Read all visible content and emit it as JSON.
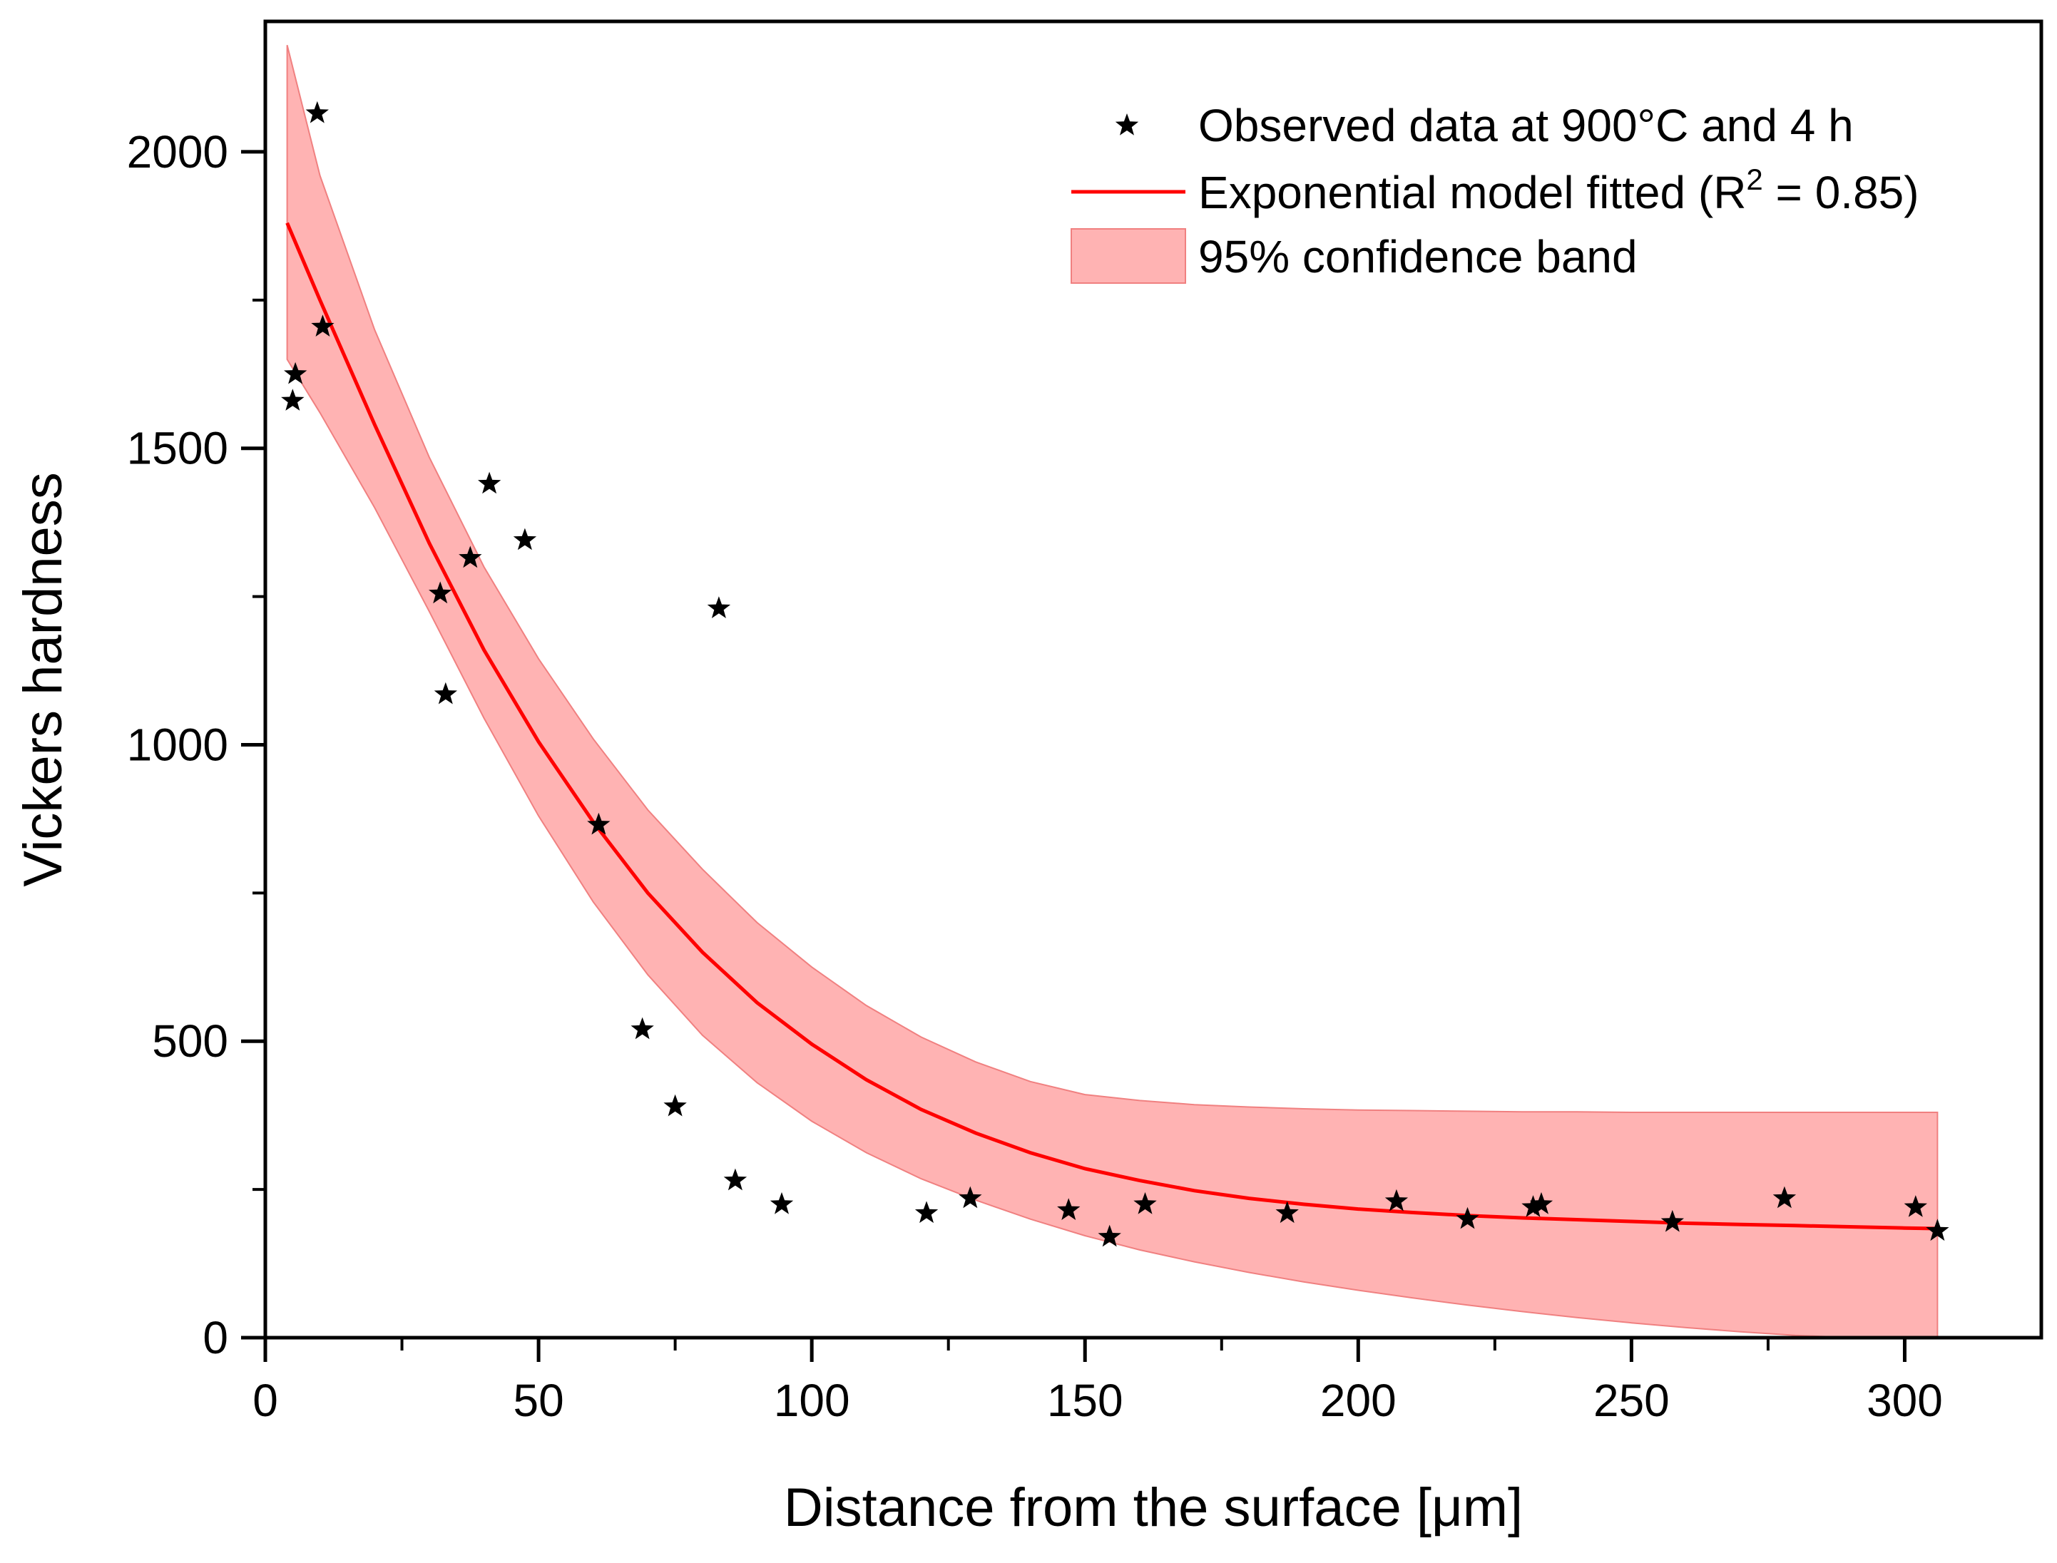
{
  "chart_data": {
    "type": "scatter",
    "xlabel": "Distance from the surface [μm]",
    "ylabel": "Vickers hardness",
    "xlim": [
      0,
      325
    ],
    "ylim": [
      0,
      2220
    ],
    "x_ticks": [
      0,
      50,
      100,
      150,
      200,
      250,
      300
    ],
    "y_ticks": [
      0,
      500,
      1000,
      1500,
      2000
    ],
    "grid": false,
    "legend_position": "top-right",
    "legend": {
      "observed": "Observed data at 900°C and 4 h",
      "fit_prefix": "Exponential model fitted (R",
      "fit_sup": "2",
      "fit_suffix": " = 0.85)",
      "band": "95% confidence band"
    },
    "colors": {
      "points": "#000000",
      "fit_line": "#ff0000",
      "band_fill": "#ffb3b3",
      "band_edge": "#f08080"
    },
    "observed": {
      "x": [
        5,
        5.5,
        9.5,
        10.5,
        32,
        33,
        37.5,
        41,
        47.5,
        61,
        69,
        75,
        83,
        86,
        94.5,
        121,
        129,
        147,
        154.5,
        161,
        187,
        207,
        220,
        232,
        233.5,
        257.5,
        278,
        302,
        306
      ],
      "y": [
        1580,
        1625,
        2065,
        1705,
        1255,
        1085,
        1315,
        1440,
        1345,
        865,
        520,
        390,
        1230,
        265,
        225,
        210,
        235,
        215,
        170,
        225,
        210,
        230,
        200,
        220,
        225,
        195,
        235,
        220,
        180
      ]
    },
    "fit": {
      "x": [
        4,
        10,
        20,
        30,
        40,
        50,
        60,
        70,
        80,
        90,
        100,
        110,
        120,
        130,
        140,
        150,
        160,
        170,
        180,
        190,
        200,
        210,
        220,
        230,
        240,
        250,
        260,
        270,
        280,
        290,
        300,
        306
      ],
      "y": [
        1880,
        1750,
        1540,
        1340,
        1160,
        1005,
        870,
        750,
        650,
        565,
        495,
        435,
        385,
        345,
        312,
        285,
        265,
        248,
        235,
        225,
        217,
        211,
        206,
        202,
        199,
        196,
        193,
        191,
        189,
        187,
        185,
        184
      ]
    },
    "band": {
      "x": [
        4,
        10,
        20,
        30,
        40,
        50,
        60,
        70,
        80,
        90,
        100,
        110,
        120,
        130,
        140,
        150,
        160,
        170,
        180,
        190,
        200,
        210,
        220,
        230,
        240,
        250,
        260,
        270,
        280,
        290,
        300,
        306
      ],
      "upper": [
        2180,
        1960,
        1700,
        1485,
        1300,
        1145,
        1010,
        890,
        790,
        700,
        625,
        560,
        507,
        465,
        432,
        410,
        400,
        393,
        389,
        386,
        384,
        383,
        382,
        381,
        381,
        380,
        380,
        380,
        380,
        380,
        380,
        380
      ],
      "lower": [
        1650,
        1560,
        1400,
        1225,
        1045,
        880,
        735,
        612,
        510,
        430,
        365,
        312,
        268,
        232,
        200,
        172,
        148,
        128,
        110,
        94,
        80,
        67,
        55,
        44,
        34,
        25,
        17,
        10,
        4,
        0,
        0,
        0
      ]
    }
  }
}
